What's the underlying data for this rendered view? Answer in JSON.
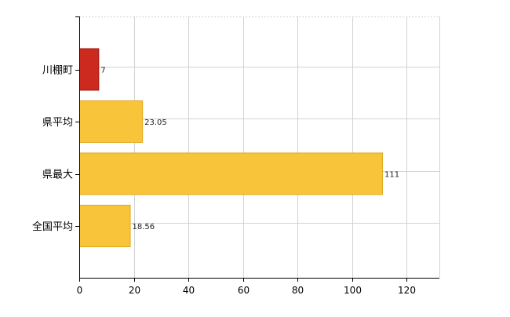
{
  "chart_data": {
    "type": "bar",
    "orientation": "horizontal",
    "categories": [
      "川棚町",
      "県平均",
      "県最大",
      "全国平均"
    ],
    "values": [
      7,
      23.05,
      111,
      18.56
    ],
    "value_labels": [
      "7",
      "23.05",
      "111",
      "18.56"
    ],
    "bar_colors": [
      "#cc2a1e",
      "#f7c43a",
      "#f7c43a",
      "#f7c43a"
    ],
    "bar_stroke_colors": [
      "#9e1b12",
      "#e0a81e",
      "#e0a81e",
      "#e0a81e"
    ],
    "xlim": [
      0,
      132
    ],
    "xticks": [
      0,
      20,
      40,
      60,
      80,
      100,
      120
    ],
    "grid": true,
    "grid_color": "#d3d3d3",
    "axis_color": "#000000",
    "title": "",
    "xlabel": "",
    "ylabel": ""
  }
}
